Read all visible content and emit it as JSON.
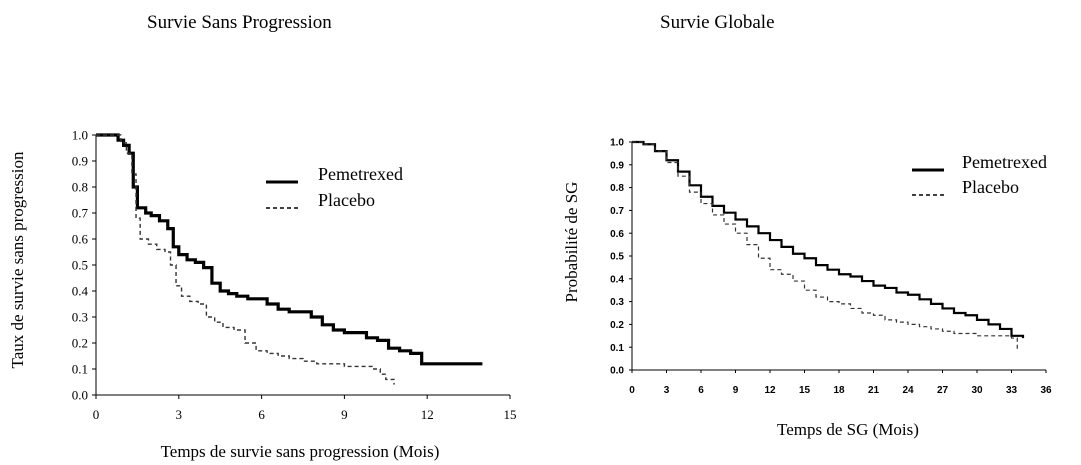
{
  "chart_data": [
    {
      "type": "line",
      "title": "Survie Sans Progression",
      "xlabel": "Temps de survie sans progression (Mois)",
      "ylabel": "Taux de survie sans progression",
      "xlim": [
        0,
        15
      ],
      "ylim": [
        0,
        1
      ],
      "xticks": [
        "0",
        "3",
        "6",
        "9",
        "12",
        "15"
      ],
      "xtick_values": [
        0,
        3,
        6,
        9,
        12,
        15
      ],
      "yticks": [
        "0.0",
        "0.1",
        "0.2",
        "0.3",
        "0.4",
        "0.5",
        "0.6",
        "0.7",
        "0.8",
        "0.9",
        "1.0"
      ],
      "ytick_values": [
        0,
        0.1,
        0.2,
        0.3,
        0.4,
        0.5,
        0.6,
        0.7,
        0.8,
        0.9,
        1.0
      ],
      "grid": false,
      "legend_position": "top-right",
      "series": [
        {
          "name": "Pemetrexed",
          "style": "solid",
          "x": [
            0,
            0.8,
            1.0,
            1.2,
            1.35,
            1.5,
            1.8,
            2.0,
            2.3,
            2.6,
            2.8,
            3.0,
            3.3,
            3.6,
            3.9,
            4.2,
            4.5,
            4.8,
            5.1,
            5.5,
            5.9,
            6.2,
            6.6,
            7.0,
            7.4,
            7.8,
            8.2,
            8.6,
            9.0,
            9.4,
            9.8,
            10.2,
            10.6,
            11.0,
            11.4,
            11.8,
            12.2,
            13.0,
            14.0
          ],
          "y": [
            1.0,
            0.98,
            0.96,
            0.93,
            0.8,
            0.72,
            0.7,
            0.69,
            0.67,
            0.64,
            0.57,
            0.54,
            0.52,
            0.51,
            0.49,
            0.43,
            0.4,
            0.39,
            0.38,
            0.37,
            0.37,
            0.35,
            0.33,
            0.32,
            0.32,
            0.3,
            0.27,
            0.25,
            0.24,
            0.24,
            0.22,
            0.21,
            0.18,
            0.17,
            0.16,
            0.12,
            0.12,
            0.12,
            0.12
          ]
        },
        {
          "name": "Placebo",
          "style": "dashed",
          "x": [
            0,
            0.9,
            1.1,
            1.3,
            1.45,
            1.6,
            1.9,
            2.2,
            2.5,
            2.7,
            2.9,
            3.1,
            3.4,
            3.7,
            4.0,
            4.3,
            4.6,
            5.0,
            5.4,
            5.8,
            6.2,
            6.6,
            7.0,
            7.5,
            8.0,
            8.5,
            9.0,
            9.5,
            10.0,
            10.3,
            10.5,
            10.8
          ],
          "y": [
            1.0,
            0.97,
            0.93,
            0.85,
            0.68,
            0.6,
            0.58,
            0.56,
            0.55,
            0.5,
            0.42,
            0.38,
            0.36,
            0.35,
            0.3,
            0.28,
            0.26,
            0.25,
            0.2,
            0.17,
            0.16,
            0.15,
            0.14,
            0.13,
            0.12,
            0.12,
            0.11,
            0.11,
            0.1,
            0.08,
            0.06,
            0.04
          ]
        }
      ]
    },
    {
      "type": "line",
      "title": "Survie Globale",
      "xlabel": "Temps de SG (Mois)",
      "ylabel": "Probabilité de SG",
      "xlim": [
        0,
        36
      ],
      "ylim": [
        0,
        1
      ],
      "xticks": [
        "0",
        "3",
        "6",
        "9",
        "12",
        "15",
        "18",
        "21",
        "24",
        "27",
        "30",
        "33",
        "36"
      ],
      "xtick_values": [
        0,
        3,
        6,
        9,
        12,
        15,
        18,
        21,
        24,
        27,
        30,
        33,
        36
      ],
      "yticks": [
        "0.0",
        "0.1",
        "0.2",
        "0.3",
        "0.4",
        "0.5",
        "0.6",
        "0.7",
        "0.8",
        "0.9",
        "1.0"
      ],
      "ytick_values": [
        0,
        0.1,
        0.2,
        0.3,
        0.4,
        0.5,
        0.6,
        0.7,
        0.8,
        0.9,
        1.0
      ],
      "grid": false,
      "legend_position": "top-right",
      "series": [
        {
          "name": "Pemetrexed",
          "style": "solid",
          "x": [
            0,
            1,
            2,
            3,
            4,
            5,
            6,
            7,
            8,
            9,
            10,
            11,
            12,
            13,
            14,
            15,
            16,
            17,
            18,
            19,
            20,
            21,
            22,
            23,
            24,
            25,
            26,
            27,
            28,
            29,
            30,
            31,
            32,
            33,
            34
          ],
          "y": [
            1.0,
            0.99,
            0.96,
            0.92,
            0.87,
            0.81,
            0.76,
            0.72,
            0.69,
            0.66,
            0.63,
            0.6,
            0.57,
            0.54,
            0.51,
            0.49,
            0.46,
            0.44,
            0.42,
            0.41,
            0.39,
            0.37,
            0.36,
            0.34,
            0.33,
            0.31,
            0.29,
            0.27,
            0.25,
            0.24,
            0.22,
            0.2,
            0.18,
            0.15,
            0.14
          ]
        },
        {
          "name": "Placebo",
          "style": "dashed",
          "x": [
            0,
            1,
            2,
            3,
            4,
            5,
            6,
            7,
            8,
            9,
            10,
            11,
            12,
            13,
            14,
            15,
            16,
            17,
            18,
            19,
            20,
            21,
            22,
            23,
            24,
            25,
            26,
            27,
            28,
            29,
            30,
            31,
            32,
            33,
            33.5
          ],
          "y": [
            1.0,
            0.99,
            0.96,
            0.91,
            0.85,
            0.78,
            0.73,
            0.68,
            0.64,
            0.6,
            0.55,
            0.49,
            0.44,
            0.42,
            0.39,
            0.35,
            0.32,
            0.3,
            0.29,
            0.27,
            0.25,
            0.24,
            0.22,
            0.21,
            0.2,
            0.19,
            0.18,
            0.17,
            0.16,
            0.16,
            0.15,
            0.15,
            0.15,
            0.14,
            0.08
          ]
        }
      ]
    }
  ]
}
